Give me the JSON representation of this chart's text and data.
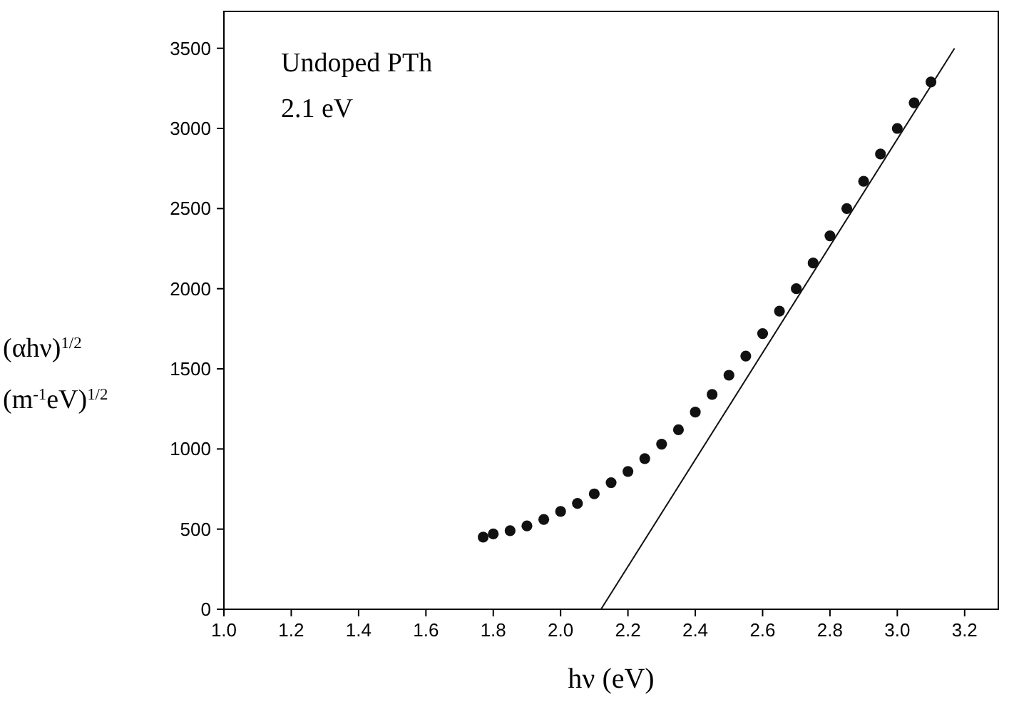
{
  "chart_data": {
    "type": "scatter",
    "xlabel": "hν (eV)",
    "ylabel": "(αhν)$^{1/2}$\n(m$^{-1}$eV)$^{1/2}$",
    "annotations": [
      "Undoped PTh",
      "2.1 eV"
    ],
    "xlim": [
      1.0,
      3.3
    ],
    "ylim": [
      0,
      3730
    ],
    "xticks": [
      {
        "value": 1.0,
        "label": "1.0"
      },
      1.2,
      1.4,
      1.6,
      1.8,
      {
        "value": 2.0,
        "label": "2.0"
      },
      2.2,
      2.4,
      2.6,
      2.8,
      {
        "value": 3.0,
        "label": "3.0"
      },
      3.2
    ],
    "yticks": [
      0,
      500,
      1000,
      1500,
      2000,
      2500,
      3000,
      3500
    ],
    "grid": false,
    "series": [
      {
        "marker": "circle",
        "color": "#111111",
        "x": [
          1.77,
          1.8,
          1.85,
          1.9,
          1.95,
          2.0,
          2.05,
          2.1,
          2.15,
          2.2,
          2.25,
          2.3,
          2.35,
          2.4,
          2.45,
          2.5,
          2.55,
          2.6,
          2.65,
          2.7,
          2.75,
          2.8,
          2.85,
          2.9,
          2.95,
          3.0,
          3.05,
          3.1
        ],
        "values": [
          450,
          470,
          490,
          520,
          560,
          610,
          660,
          720,
          790,
          860,
          940,
          1030,
          1120,
          1230,
          1340,
          1460,
          1580,
          1720,
          1860,
          2000,
          2160,
          2330,
          2500,
          2670,
          2840,
          3000,
          3160,
          3290
        ]
      },
      {
        "type": "line",
        "color": "#111111",
        "x": [
          2.12,
          3.17
        ],
        "values": [
          0,
          3500
        ]
      }
    ]
  }
}
